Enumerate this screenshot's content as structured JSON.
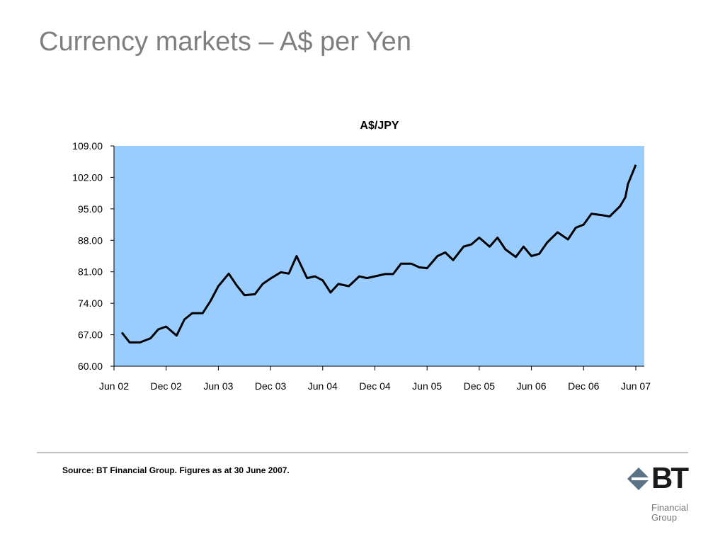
{
  "slide": {
    "title": "Currency markets – A$ per Yen",
    "source": "Source: BT Financial Group. Figures as at 30 June 2007."
  },
  "logo": {
    "wordmark": "BT",
    "line1": "Financial",
    "line2": "Group"
  },
  "colors": {
    "plot_background": "#99ccff",
    "line": "#000000"
  },
  "chart_data": {
    "type": "line",
    "title": "A$/JPY",
    "xlabel": "",
    "ylabel": "",
    "ylim": [
      60,
      109
    ],
    "yticks": [
      "60.00",
      "67.00",
      "74.00",
      "81.00",
      "88.00",
      "95.00",
      "102.00",
      "109.00"
    ],
    "xticks": [
      "Jun 02",
      "Dec 02",
      "Jun 03",
      "Dec 03",
      "Jun 04",
      "Dec 04",
      "Jun 05",
      "Dec 05",
      "Jun 06",
      "Dec 06",
      "Jun 07"
    ],
    "grid": false,
    "legend": "none",
    "series": [
      {
        "x": [
          0.15,
          0.3,
          0.5,
          0.7,
          0.85,
          1.0,
          1.2,
          1.35,
          1.5,
          1.7,
          1.85,
          2.0,
          2.2,
          2.35,
          2.5,
          2.7,
          2.85,
          3.0,
          3.2,
          3.35,
          3.5,
          3.7,
          3.85,
          4.0,
          4.15,
          4.3,
          4.5,
          4.7,
          4.85,
          5.0,
          5.2,
          5.35,
          5.5,
          5.7,
          5.85,
          6.0,
          6.2,
          6.35,
          6.5,
          6.7,
          6.85,
          7.0,
          7.2,
          7.35,
          7.5,
          7.7,
          7.85,
          8.0,
          8.15,
          8.3,
          8.5,
          8.7,
          8.85,
          9.0,
          9.15,
          9.35,
          9.5,
          9.7,
          9.8,
          9.85,
          10.0
        ],
        "y": [
          67.5,
          65.3,
          65.3,
          66.2,
          68.2,
          68.8,
          66.8,
          70.4,
          71.8,
          71.8,
          74.5,
          77.8,
          80.6,
          78.0,
          75.8,
          76.0,
          78.3,
          79.5,
          80.9,
          80.6,
          84.5,
          79.6,
          80.0,
          79.1,
          76.4,
          78.3,
          77.8,
          80.0,
          79.6,
          80.0,
          80.5,
          80.5,
          82.8,
          82.8,
          82.0,
          81.8,
          84.5,
          85.3,
          83.6,
          86.6,
          87.1,
          88.6,
          86.6,
          88.6,
          86.0,
          84.3,
          86.6,
          84.5,
          85.0,
          87.5,
          89.8,
          88.2,
          90.8,
          91.5,
          93.9,
          93.6,
          93.3,
          95.6,
          97.6,
          100.5,
          104.8
        ]
      }
    ]
  }
}
